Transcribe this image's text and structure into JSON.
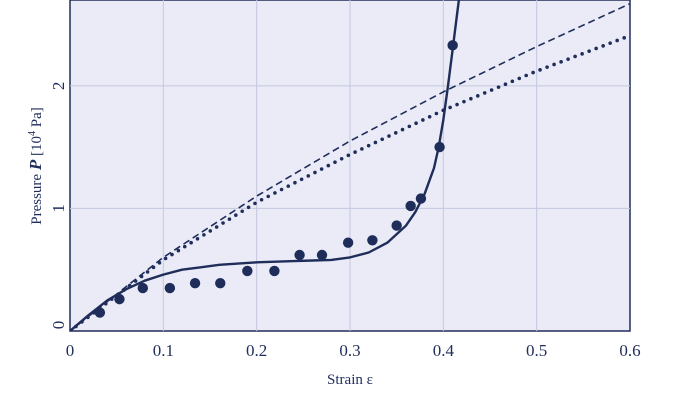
{
  "chart_data": {
    "type": "scatter",
    "xlabel": "Strain ε",
    "ylabel_parts": {
      "text": "Pressure ",
      "symbol": "P",
      "unit_open": " [10",
      "unit_exp": "4",
      "unit_close": " Pa]"
    },
    "xlim": [
      0,
      0.6
    ],
    "ylim": [
      0,
      2.7
    ],
    "x_ticks": [
      0,
      0.1,
      0.2,
      0.3,
      0.4,
      0.5,
      0.6
    ],
    "x_tick_labels": [
      "0",
      "0.1",
      "0.2",
      "0.3",
      "0.4",
      "0.5",
      "0.6"
    ],
    "y_ticks": [
      0,
      1,
      2
    ],
    "y_tick_labels": [
      "0",
      "1",
      "2"
    ],
    "grid": true,
    "colors": {
      "background": "#eaebf6",
      "grid": "#c3c7e0",
      "ink": "#1f2d5a"
    },
    "series": [
      {
        "style": "markers",
        "x": [
          0.032,
          0.053,
          0.078,
          0.107,
          0.134,
          0.161,
          0.19,
          0.219,
          0.246,
          0.27,
          0.298,
          0.324,
          0.35,
          0.365,
          0.376,
          0.396,
          0.41
        ],
        "y": [
          0.15,
          0.26,
          0.35,
          0.35,
          0.39,
          0.39,
          0.49,
          0.49,
          0.62,
          0.62,
          0.72,
          0.74,
          0.86,
          1.02,
          1.08,
          1.5,
          2.33
        ]
      },
      {
        "style": "solid",
        "x": [
          0,
          0.02,
          0.04,
          0.06,
          0.08,
          0.1,
          0.12,
          0.14,
          0.16,
          0.18,
          0.2,
          0.22,
          0.24,
          0.26,
          0.28,
          0.3,
          0.32,
          0.34,
          0.36,
          0.37,
          0.38,
          0.39,
          0.395,
          0.4,
          0.405,
          0.41,
          0.415,
          0.42
        ],
        "y": [
          0,
          0.13,
          0.25,
          0.34,
          0.41,
          0.46,
          0.5,
          0.52,
          0.54,
          0.55,
          0.56,
          0.565,
          0.57,
          0.575,
          0.58,
          0.6,
          0.64,
          0.72,
          0.86,
          0.97,
          1.12,
          1.33,
          1.5,
          1.72,
          2.0,
          2.3,
          2.6,
          2.9
        ]
      },
      {
        "style": "dashed",
        "x": [
          0,
          0.1,
          0.2,
          0.3,
          0.4,
          0.5,
          0.6
        ],
        "y": [
          0,
          0.6,
          1.1,
          1.55,
          1.95,
          2.32,
          2.67
        ]
      },
      {
        "style": "dotted",
        "x": [
          0,
          0.1,
          0.2,
          0.3,
          0.4,
          0.5,
          0.6
        ],
        "y": [
          0,
          0.58,
          1.05,
          1.44,
          1.8,
          2.12,
          2.41
        ]
      }
    ]
  }
}
